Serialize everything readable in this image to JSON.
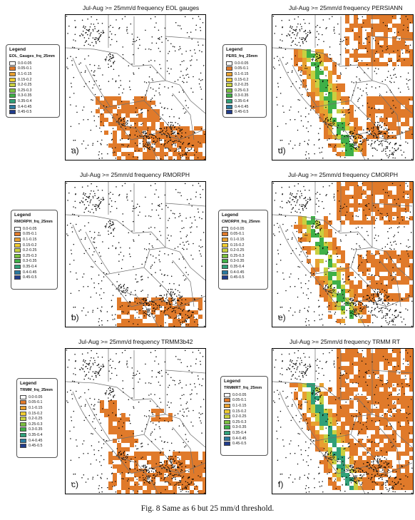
{
  "caption": "Fig. 8 Same as 6 but 25 mm/d threshold.",
  "legend_title": "Legend",
  "colors": {
    "classes": [
      "#ffffff",
      "#e07a2a",
      "#e8a030",
      "#f0cc30",
      "#c8d040",
      "#7cc040",
      "#40b048",
      "#30a078",
      "#2a7aa0",
      "#203c8c"
    ],
    "dots": "#000000",
    "boundary": "#6e6e6e"
  },
  "panels": [
    {
      "id": "a",
      "title": "Jul-Aug >= 25mm/d frequency EOL gauges",
      "letter": "a)",
      "legend_field": "EOL_Gauges_frq_25mm",
      "legend_labels": [
        "0.0-0.05",
        "0.05-0.1",
        "0.1-0.15",
        "0.15-0.2",
        "0.2-0.25",
        "0.25-0.3",
        "0.3-0.35",
        "0.35-0.4",
        "0.4-0.45",
        "0.45-0.5"
      ],
      "pattern": "gauges"
    },
    {
      "id": "d",
      "title": "Jul-Aug >= 25mm/d frequency PERSIANN",
      "letter": "d)",
      "legend_field": "PERS_frq_25mm",
      "legend_labels": [
        "0.0-0.05",
        "0.05-0.1",
        "0.1-0.15",
        "0.15-0.2",
        "0.2-0.25",
        "0.25-0.3",
        "0.3-0.35",
        "0.35-0.4",
        "0.4-0.45",
        "0.45-0.5"
      ],
      "pattern": "persiann"
    },
    {
      "id": "b",
      "title": "Jul-Aug >= 25mm/d frequency RMORPH",
      "letter": "b)",
      "legend_field": "RMORPH_frq_25mm",
      "legend_labels": [
        "0.0-0.05",
        "0.05-0.1",
        "0.1-0.15",
        "0.15-0.2",
        "0.2-0.25",
        "0.25-0.3",
        "0.3-0.35",
        "0.35-0.4",
        "0.4-0.45",
        "0.45-0.5"
      ],
      "pattern": "rmorph"
    },
    {
      "id": "e",
      "title": "Jul-Aug >= 25mm/d frequency CMORPH",
      "letter": "e)",
      "legend_field": "CMORPH_frq_25mm",
      "legend_labels": [
        "0.0-0.05",
        "0.05-0.1",
        "0.1-0.15",
        "0.15-0.2",
        "0.2-0.25",
        "0.25-0.3",
        "0.3-0.35",
        "0.35-0.4",
        "0.4-0.45",
        "0.45-0.5"
      ],
      "pattern": "cmorph"
    },
    {
      "id": "c",
      "title": "Jul-Aug >= 25mm/d frequency TRMM3b42",
      "letter": "c)",
      "legend_field": "TRMM_frq_25mm",
      "legend_labels": [
        "0.0-0.05",
        "0.05-0.1",
        "0.1-0.15",
        "0.15-0.2",
        "0.2-0.25",
        "0.25-0.3",
        "0.3-0.35",
        "0.35-0.4",
        "0.4-0.45",
        "0.45-0.5"
      ],
      "pattern": "trmm"
    },
    {
      "id": "f",
      "title": "Jul-Aug >= 25mm/d frequency TRMM RT",
      "letter": "f)",
      "legend_field": "TRMMRT_frq_25mm",
      "legend_labels": [
        "0.0-0.05",
        "0.05-0.1",
        "0.1-0.15",
        "0.15-0.2",
        "0.2-0.25",
        "0.25-0.3",
        "0.3-0.35",
        "0.35-0.4",
        "0.4-0.45",
        "0.45-0.5"
      ],
      "pattern": "trmmrt"
    }
  ]
}
